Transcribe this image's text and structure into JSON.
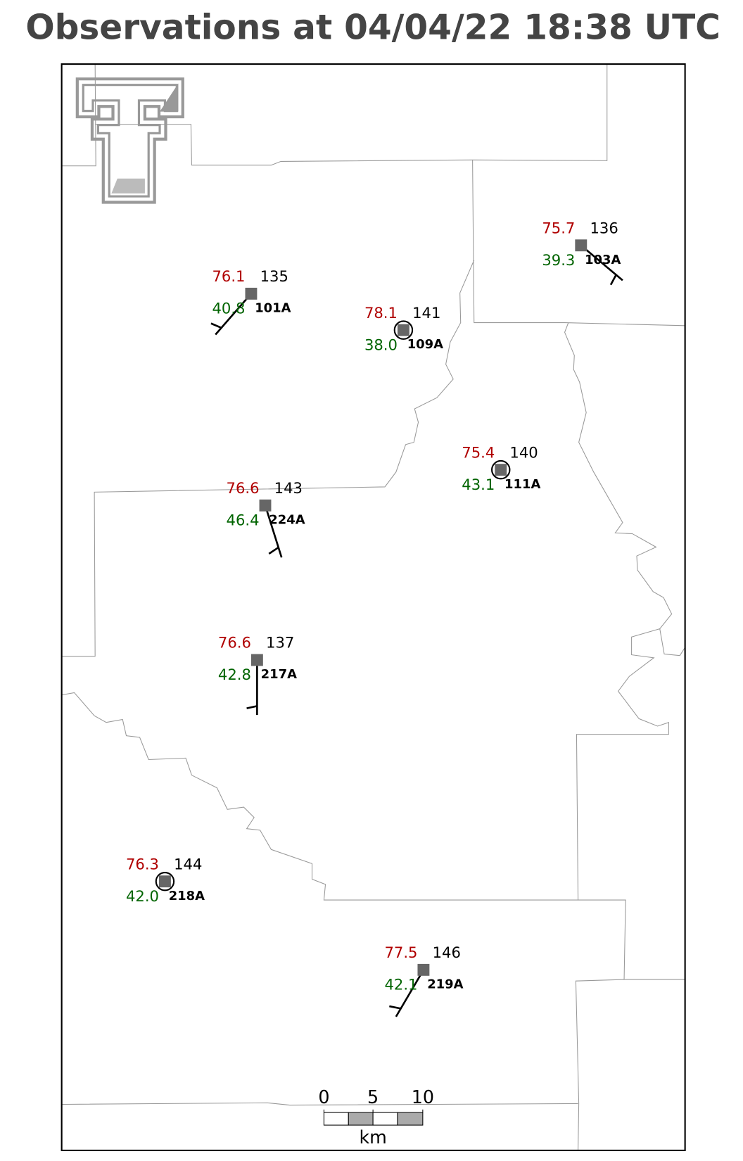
{
  "title": "Observations at 04/04/22 18:38 UTC",
  "stations": [
    {
      "id": "101A",
      "temperature": "76.1",
      "dewpoint": "40.8",
      "value": "135"
    },
    {
      "id": "109A",
      "temperature": "78.1",
      "dewpoint": "38.0",
      "value": "141"
    },
    {
      "id": "103A",
      "temperature": "75.7",
      "dewpoint": "39.3",
      "value": "136"
    },
    {
      "id": "111A",
      "temperature": "75.4",
      "dewpoint": "43.1",
      "value": "140"
    },
    {
      "id": "224A",
      "temperature": "76.6",
      "dewpoint": "46.4",
      "value": "143"
    },
    {
      "id": "217A",
      "temperature": "76.6",
      "dewpoint": "42.8",
      "value": "137"
    },
    {
      "id": "218A",
      "temperature": "76.3",
      "dewpoint": "42.0",
      "value": "144"
    },
    {
      "id": "219A",
      "temperature": "77.5",
      "dewpoint": "42.1",
      "value": "146"
    }
  ],
  "scale_bar": {
    "ticks": [
      "0",
      "5",
      "10"
    ],
    "unit": "km"
  }
}
